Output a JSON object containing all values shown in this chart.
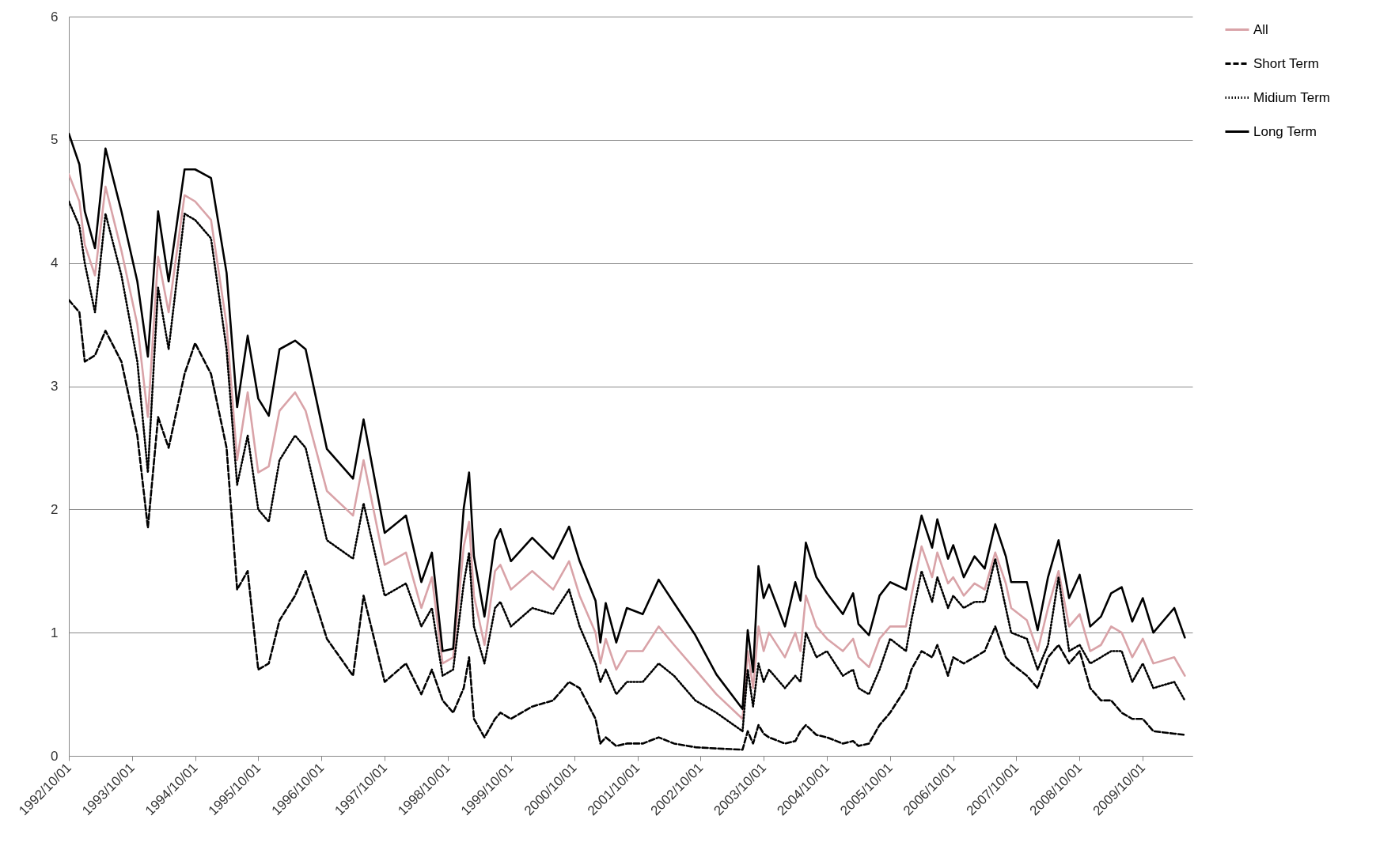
{
  "chart_data": {
    "type": "line",
    "x": [
      "1992-10",
      "1992-12",
      "1993-01",
      "1993-03",
      "1993-05",
      "1993-08",
      "1993-11",
      "1994-01",
      "1994-03",
      "1994-05",
      "1994-08",
      "1994-10",
      "1995-01",
      "1995-04",
      "1995-06",
      "1995-08",
      "1995-10",
      "1995-12",
      "1996-02",
      "1996-05",
      "1996-07",
      "1996-11",
      "1997-04",
      "1997-06",
      "1997-10",
      "1998-02",
      "1998-05",
      "1998-07",
      "1998-09",
      "1998-11",
      "1999-01",
      "1999-02",
      "1999-03",
      "1999-05",
      "1999-07",
      "1999-08",
      "1999-10",
      "2000-02",
      "2000-06",
      "2000-09",
      "2000-11",
      "2001-02",
      "2001-03",
      "2001-04",
      "2001-06",
      "2001-08",
      "2001-11",
      "2002-02",
      "2002-05",
      "2002-09",
      "2003-01",
      "2003-06",
      "2003-07",
      "2003-08",
      "2003-09",
      "2003-10",
      "2003-11",
      "2004-02",
      "2004-04",
      "2004-05",
      "2004-06",
      "2004-08",
      "2004-10",
      "2005-01",
      "2005-03",
      "2005-04",
      "2005-06",
      "2005-08",
      "2005-10",
      "2006-01",
      "2006-02",
      "2006-04",
      "2006-06",
      "2006-07",
      "2006-09",
      "2006-10",
      "2006-12",
      "2007-02",
      "2007-04",
      "2007-06",
      "2007-08",
      "2007-09",
      "2007-12",
      "2008-02",
      "2008-04",
      "2008-06",
      "2008-08",
      "2008-10",
      "2008-12",
      "2009-02",
      "2009-04",
      "2009-06",
      "2009-08",
      "2009-10",
      "2009-12",
      "2010-04",
      "2010-06"
    ],
    "series": [
      {
        "name": "All",
        "color": "#d9a3a8",
        "line_style": "solid",
        "values": [
          4.72,
          4.5,
          4.15,
          3.9,
          4.62,
          4.1,
          3.5,
          2.75,
          4.05,
          3.6,
          4.55,
          4.5,
          4.35,
          3.5,
          2.4,
          2.95,
          2.3,
          2.35,
          2.8,
          2.95,
          2.8,
          2.15,
          1.95,
          2.4,
          1.55,
          1.65,
          1.2,
          1.45,
          0.75,
          0.8,
          1.7,
          1.9,
          1.3,
          0.9,
          1.5,
          1.55,
          1.35,
          1.5,
          1.35,
          1.58,
          1.3,
          1.0,
          0.75,
          0.95,
          0.7,
          0.85,
          0.85,
          1.05,
          0.9,
          0.7,
          0.5,
          0.3,
          0.85,
          0.55,
          1.05,
          0.85,
          1.0,
          0.8,
          1.0,
          0.85,
          1.3,
          1.05,
          0.95,
          0.85,
          0.95,
          0.8,
          0.72,
          0.95,
          1.05,
          1.05,
          1.3,
          1.7,
          1.45,
          1.65,
          1.4,
          1.45,
          1.3,
          1.4,
          1.35,
          1.65,
          1.4,
          1.2,
          1.1,
          0.85,
          1.2,
          1.5,
          1.05,
          1.15,
          0.85,
          0.9,
          1.05,
          1.0,
          0.8,
          0.95,
          0.75,
          0.8,
          0.65
        ]
      },
      {
        "name": "Short Term",
        "color": "#000000",
        "line_style": "dashed",
        "values": [
          3.7,
          3.6,
          3.2,
          3.25,
          3.45,
          3.2,
          2.6,
          1.85,
          2.75,
          2.5,
          3.1,
          3.35,
          3.1,
          2.5,
          1.35,
          1.5,
          0.7,
          0.75,
          1.1,
          1.3,
          1.5,
          0.95,
          0.65,
          1.3,
          0.6,
          0.75,
          0.5,
          0.7,
          0.45,
          0.35,
          0.55,
          0.8,
          0.3,
          0.15,
          0.3,
          0.35,
          0.3,
          0.4,
          0.45,
          0.6,
          0.55,
          0.3,
          0.1,
          0.15,
          0.08,
          0.1,
          0.1,
          0.15,
          0.1,
          0.07,
          0.06,
          0.05,
          0.2,
          0.1,
          0.25,
          0.18,
          0.15,
          0.1,
          0.12,
          0.2,
          0.25,
          0.17,
          0.15,
          0.1,
          0.12,
          0.08,
          0.1,
          0.25,
          0.35,
          0.55,
          0.7,
          0.85,
          0.8,
          0.9,
          0.65,
          0.8,
          0.75,
          0.8,
          0.85,
          1.05,
          0.8,
          0.75,
          0.65,
          0.55,
          0.8,
          0.9,
          0.75,
          0.85,
          0.55,
          0.45,
          0.45,
          0.35,
          0.3,
          0.3,
          0.2,
          0.18,
          0.17
        ]
      },
      {
        "name": "Midium Term",
        "color": "#000000",
        "line_style": "dotted",
        "values": [
          4.5,
          4.3,
          4.0,
          3.6,
          4.4,
          3.9,
          3.2,
          2.3,
          3.8,
          3.3,
          4.4,
          4.35,
          4.2,
          3.3,
          2.2,
          2.6,
          2.0,
          1.9,
          2.4,
          2.6,
          2.5,
          1.75,
          1.6,
          2.05,
          1.3,
          1.4,
          1.05,
          1.2,
          0.65,
          0.7,
          1.4,
          1.65,
          1.05,
          0.75,
          1.2,
          1.25,
          1.05,
          1.2,
          1.15,
          1.35,
          1.05,
          0.75,
          0.6,
          0.7,
          0.5,
          0.6,
          0.6,
          0.75,
          0.65,
          0.45,
          0.35,
          0.2,
          0.7,
          0.4,
          0.75,
          0.6,
          0.7,
          0.55,
          0.65,
          0.6,
          1.0,
          0.8,
          0.85,
          0.65,
          0.7,
          0.55,
          0.5,
          0.7,
          0.95,
          0.85,
          1.1,
          1.5,
          1.25,
          1.45,
          1.2,
          1.3,
          1.2,
          1.25,
          1.25,
          1.6,
          1.2,
          1.0,
          0.95,
          0.7,
          0.9,
          1.45,
          0.85,
          0.9,
          0.75,
          0.8,
          0.85,
          0.85,
          0.6,
          0.75,
          0.55,
          0.6,
          0.45
        ]
      },
      {
        "name": "Long Term",
        "color": "#000000",
        "line_style": "solid",
        "values": [
          5.05,
          4.8,
          4.42,
          4.12,
          4.93,
          4.42,
          3.85,
          3.24,
          4.42,
          3.85,
          4.76,
          4.76,
          4.69,
          3.92,
          2.83,
          3.41,
          2.9,
          2.76,
          3.3,
          3.37,
          3.3,
          2.49,
          2.25,
          2.73,
          1.81,
          1.95,
          1.41,
          1.65,
          0.85,
          0.87,
          2.01,
          2.3,
          1.62,
          1.13,
          1.75,
          1.84,
          1.58,
          1.77,
          1.6,
          1.86,
          1.58,
          1.26,
          0.92,
          1.24,
          0.92,
          1.2,
          1.15,
          1.43,
          1.24,
          0.98,
          0.66,
          0.38,
          1.02,
          0.68,
          1.54,
          1.28,
          1.39,
          1.05,
          1.41,
          1.26,
          1.73,
          1.45,
          1.32,
          1.15,
          1.32,
          1.07,
          0.98,
          1.3,
          1.41,
          1.35,
          1.56,
          1.95,
          1.69,
          1.92,
          1.6,
          1.71,
          1.45,
          1.62,
          1.52,
          1.88,
          1.62,
          1.41,
          1.41,
          1.02,
          1.45,
          1.75,
          1.28,
          1.47,
          1.05,
          1.13,
          1.32,
          1.37,
          1.09,
          1.28,
          1.0,
          1.2,
          0.96
        ]
      }
    ],
    "xlim": [
      "1992-10-01",
      "2010-07-15"
    ],
    "xticks": [
      {
        "value": "1992-10-01",
        "label": "1992/10/01"
      },
      {
        "value": "1993-10-01",
        "label": "1993/10/01"
      },
      {
        "value": "1994-10-01",
        "label": "1994/10/01"
      },
      {
        "value": "1995-10-01",
        "label": "1995/10/01"
      },
      {
        "value": "1996-10-01",
        "label": "1996/10/01"
      },
      {
        "value": "1997-10-01",
        "label": "1997/10/01"
      },
      {
        "value": "1998-10-01",
        "label": "1998/10/01"
      },
      {
        "value": "1999-10-01",
        "label": "1999/10/01"
      },
      {
        "value": "2000-10-01",
        "label": "2000/10/01"
      },
      {
        "value": "2001-10-01",
        "label": "2001/10/01"
      },
      {
        "value": "2002-10-01",
        "label": "2002/10/01"
      },
      {
        "value": "2003-10-01",
        "label": "2003/10/01"
      },
      {
        "value": "2004-10-01",
        "label": "2004/10/01"
      },
      {
        "value": "2005-10-01",
        "label": "2005/10/01"
      },
      {
        "value": "2006-10-01",
        "label": "2006/10/01"
      },
      {
        "value": "2007-10-01",
        "label": "2007/10/01"
      },
      {
        "value": "2008-10-01",
        "label": "2008/10/01"
      },
      {
        "value": "2009-10-01",
        "label": "2009/10/01"
      }
    ],
    "ylim": [
      0,
      6
    ],
    "yticks": [
      0,
      1,
      2,
      3,
      4,
      5,
      6
    ],
    "grid": "y",
    "legend": "right"
  }
}
